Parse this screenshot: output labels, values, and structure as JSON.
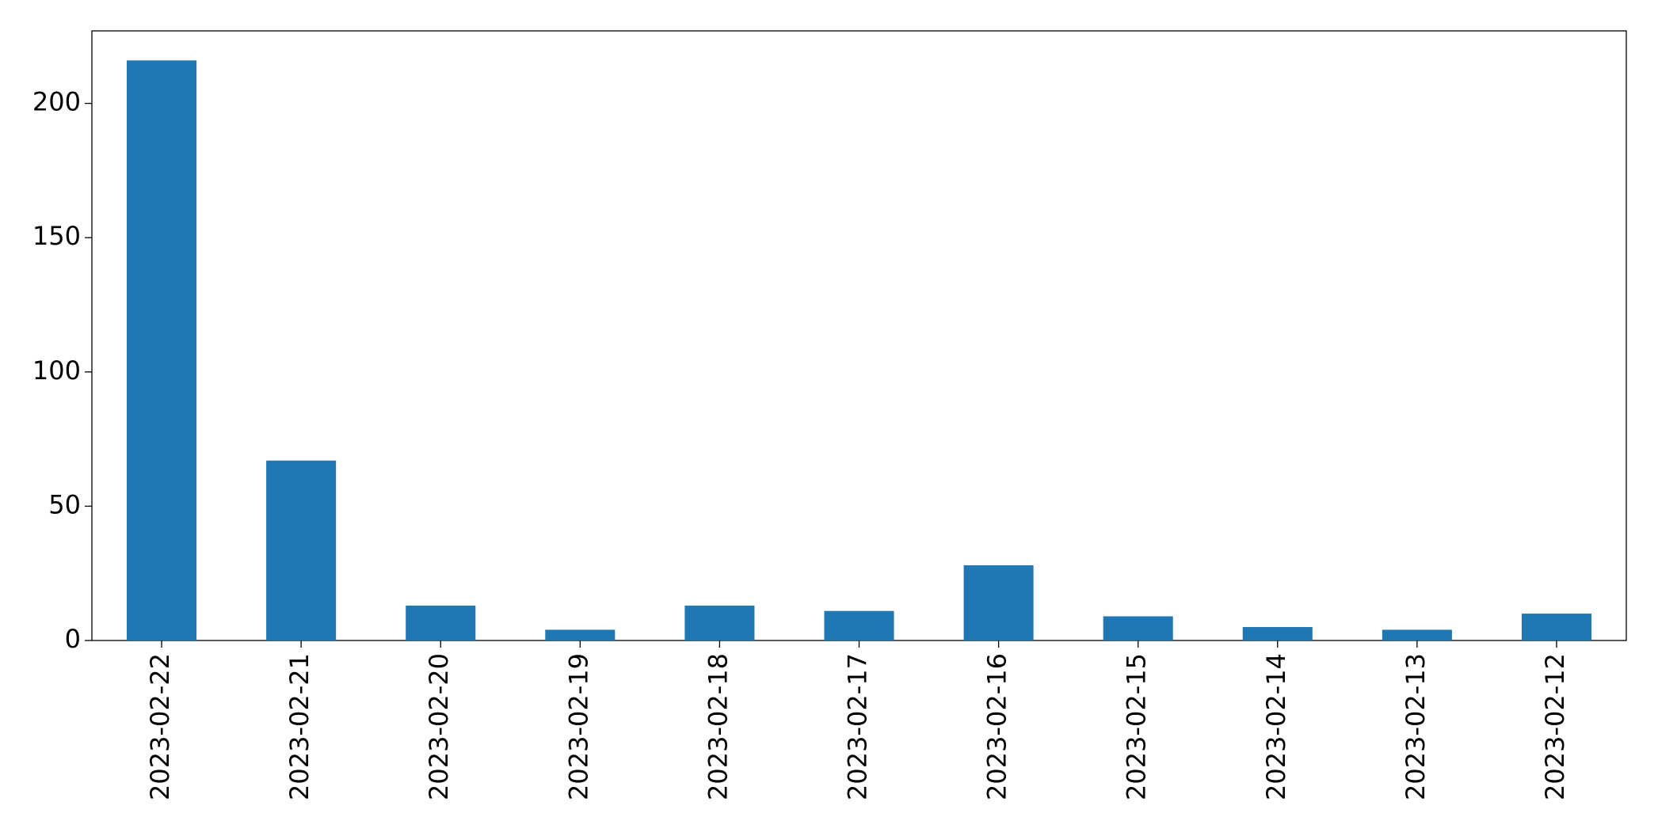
{
  "chart_data": {
    "type": "bar",
    "categories": [
      "2023-02-22",
      "2023-02-21",
      "2023-02-20",
      "2023-02-19",
      "2023-02-18",
      "2023-02-17",
      "2023-02-16",
      "2023-02-15",
      "2023-02-14",
      "2023-02-13",
      "2023-02-12"
    ],
    "values": [
      216,
      67,
      13,
      4,
      13,
      11,
      28,
      9,
      5,
      4,
      10
    ],
    "color": "#1f77b4",
    "ylim": [
      0,
      227
    ],
    "yticks": [
      0,
      50,
      100,
      150,
      200
    ],
    "grid": false
  }
}
